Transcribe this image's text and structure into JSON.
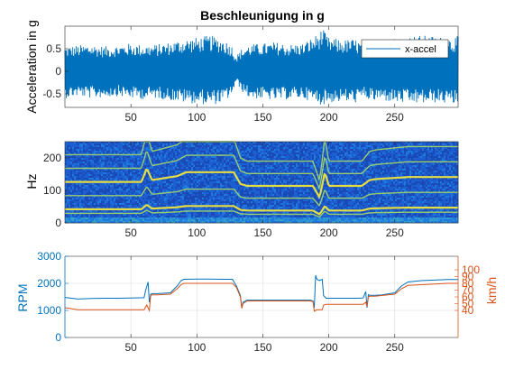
{
  "chart_data": [
    {
      "type": "line",
      "title": "Beschleunigung in g",
      "xlabel": "",
      "ylabel": "Acceleration in g",
      "xlim": [
        0,
        298
      ],
      "ylim": [
        -0.8,
        1.0
      ],
      "xticks": [
        50,
        100,
        150,
        200,
        250
      ],
      "yticks": [
        -0.5,
        0,
        0.5
      ],
      "ytick_labels": [
        "-0.5",
        "0",
        "0.5"
      ],
      "legend_position": "top-right",
      "series": [
        {
          "name": "x-accel",
          "color": "#0072bd",
          "envelope_x": [
            0,
            10,
            20,
            30,
            40,
            50,
            60,
            70,
            80,
            90,
            100,
            110,
            120,
            126,
            130,
            134,
            140,
            150,
            160,
            170,
            180,
            190,
            195,
            200,
            210,
            220,
            228,
            232,
            240,
            250,
            260,
            270,
            280,
            290,
            298
          ],
          "envelope_upper": [
            0.55,
            0.58,
            0.6,
            0.55,
            0.58,
            0.62,
            0.58,
            0.6,
            0.65,
            0.72,
            0.75,
            0.8,
            0.72,
            0.6,
            0.35,
            0.5,
            0.6,
            0.62,
            0.65,
            0.6,
            0.62,
            0.8,
            0.95,
            0.75,
            0.7,
            0.72,
            0.6,
            0.7,
            0.68,
            0.75,
            0.78,
            0.8,
            0.78,
            0.75,
            0.78
          ],
          "envelope_lower": [
            -0.6,
            -0.55,
            -0.6,
            -0.58,
            -0.55,
            -0.6,
            -0.62,
            -0.6,
            -0.65,
            -0.7,
            -0.72,
            -0.75,
            -0.7,
            -0.55,
            -0.25,
            -0.45,
            -0.6,
            -0.62,
            -0.65,
            -0.62,
            -0.6,
            -0.7,
            -0.75,
            -0.7,
            -0.68,
            -0.7,
            -0.6,
            -0.68,
            -0.65,
            -0.7,
            -0.72,
            -0.72,
            -0.7,
            -0.72,
            -0.74
          ]
        }
      ]
    },
    {
      "type": "heatmap",
      "title": "",
      "xlabel": "",
      "ylabel": "Hz",
      "xlim": [
        0,
        298
      ],
      "ylim": [
        0,
        250
      ],
      "xticks": [
        50,
        100,
        150,
        200,
        250
      ],
      "yticks": [
        0,
        100,
        200
      ],
      "harmonic_track_points": {
        "x": [
          0,
          58,
          62,
          66,
          85,
          92,
          128,
          133,
          138,
          188,
          193,
          197,
          200,
          225,
          231,
          236,
          260,
          298
        ],
        "base_hz": [
          42,
          42,
          56,
          44,
          48,
          52,
          52,
          40,
          38,
          38,
          26,
          52,
          38,
          38,
          44,
          45,
          47,
          47
        ]
      },
      "harmonic_multipliers": [
        0.7,
        1,
        2,
        3,
        4,
        5
      ]
    },
    {
      "type": "line",
      "title": "",
      "xlabel": "",
      "ylabel": "RPM",
      "y2label": "km/h",
      "xlim": [
        0,
        298
      ],
      "ylim": [
        0,
        3000
      ],
      "y2lim": [
        0,
        120
      ],
      "xticks": [
        50,
        100,
        150,
        200,
        250
      ],
      "yticks": [
        0,
        1000,
        2000,
        3000
      ],
      "y2ticks": [
        40,
        50,
        60,
        70,
        80,
        90,
        100
      ],
      "grid": true,
      "series": [
        {
          "name": "",
          "axis": "left",
          "color": "#0072bd",
          "x": [
            0,
            10,
            20,
            30,
            40,
            50,
            60,
            61,
            63,
            64,
            65,
            66,
            70,
            80,
            85,
            88,
            90,
            100,
            110,
            120,
            127,
            130,
            133,
            134,
            135,
            138,
            150,
            170,
            186,
            188,
            189,
            190,
            191,
            193,
            195,
            196,
            198,
            200,
            210,
            220,
            226,
            228,
            229,
            230,
            231,
            235,
            240,
            250,
            255,
            260,
            270,
            280,
            290,
            298
          ],
          "y": [
            1480,
            1420,
            1440,
            1450,
            1450,
            1460,
            1470,
            1700,
            2050,
            1300,
            1600,
            1620,
            1620,
            1650,
            1900,
            2100,
            2150,
            2160,
            2160,
            2150,
            2150,
            1900,
            1550,
            1100,
            1300,
            1380,
            1380,
            1380,
            1380,
            1350,
            1100,
            2300,
            2150,
            2100,
            2150,
            1550,
            1450,
            1450,
            1450,
            1450,
            1460,
            1700,
            1100,
            1580,
            1560,
            1560,
            1570,
            1650,
            1900,
            2050,
            2100,
            2120,
            2140,
            2140
          ]
        },
        {
          "name": "",
          "axis": "right",
          "color": "#d95319",
          "x": [
            0,
            10,
            20,
            30,
            40,
            50,
            60,
            62,
            64,
            65,
            66,
            70,
            80,
            85,
            88,
            90,
            100,
            110,
            120,
            127,
            130,
            133,
            134,
            135,
            138,
            150,
            170,
            186,
            188,
            189,
            190,
            191,
            193,
            195,
            196,
            198,
            200,
            210,
            220,
            226,
            228,
            229,
            230,
            231,
            235,
            240,
            250,
            255,
            260,
            270,
            280,
            290,
            298
          ],
          "y": [
            44,
            41,
            41,
            41,
            41,
            41,
            41,
            48,
            40,
            62,
            63,
            63,
            64,
            72,
            78,
            80,
            80,
            80,
            80,
            80,
            74,
            60,
            43,
            50,
            54,
            54,
            54,
            54,
            53,
            39,
            40,
            41,
            41,
            41,
            48,
            49,
            49,
            49,
            49,
            49,
            52,
            46,
            60,
            61,
            61,
            62,
            64,
            72,
            77,
            78,
            79,
            80,
            80
          ]
        }
      ]
    }
  ]
}
